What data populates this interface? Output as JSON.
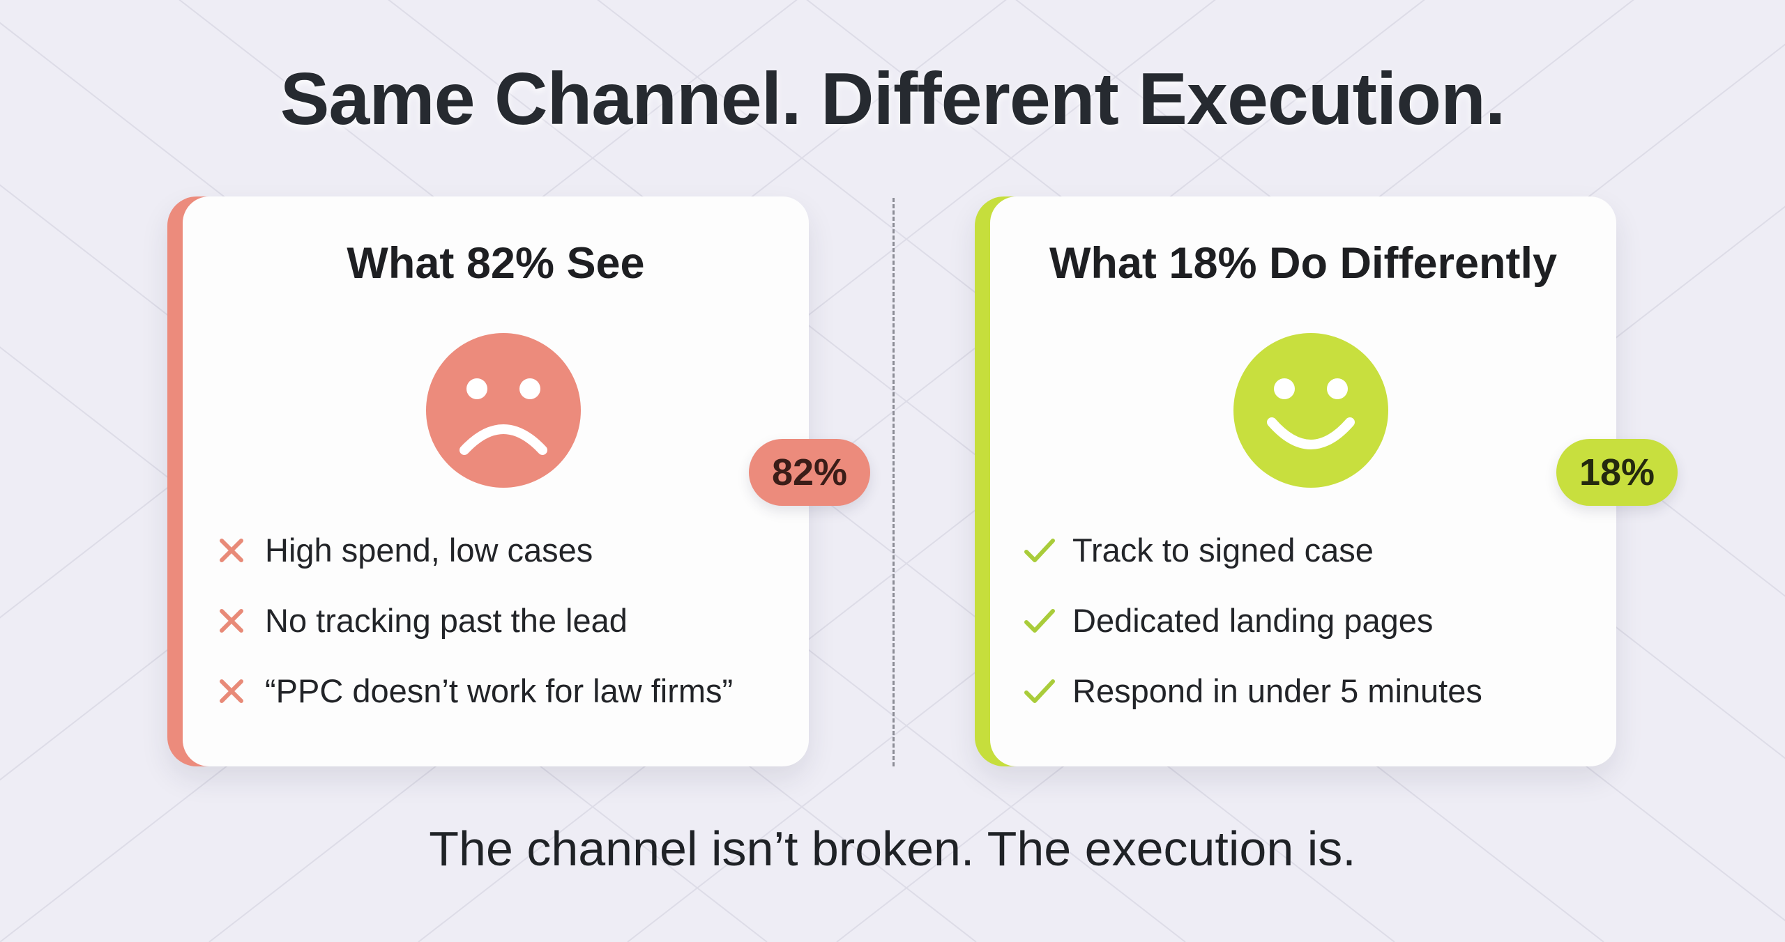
{
  "headline": "Same Channel. Different Execution.",
  "left_card": {
    "title": "What 82% See",
    "face_icon": "sad-face-icon",
    "mark_icon": "x-icon",
    "items": [
      "High spend, low cases",
      "No tracking past the lead",
      "“PPC doesn’t work for law firms”"
    ],
    "badge": "82%",
    "accent_color": "#ec8b7c"
  },
  "right_card": {
    "title": "What 18% Do Differently",
    "face_icon": "happy-face-icon",
    "mark_icon": "check-icon",
    "items": [
      "Track to signed case",
      "Dedicated landing pages",
      "Respond in under 5 minutes"
    ],
    "badge": "18%",
    "accent_color": "#c8df3e"
  },
  "footer": "The channel isn’t broken. The execution is."
}
